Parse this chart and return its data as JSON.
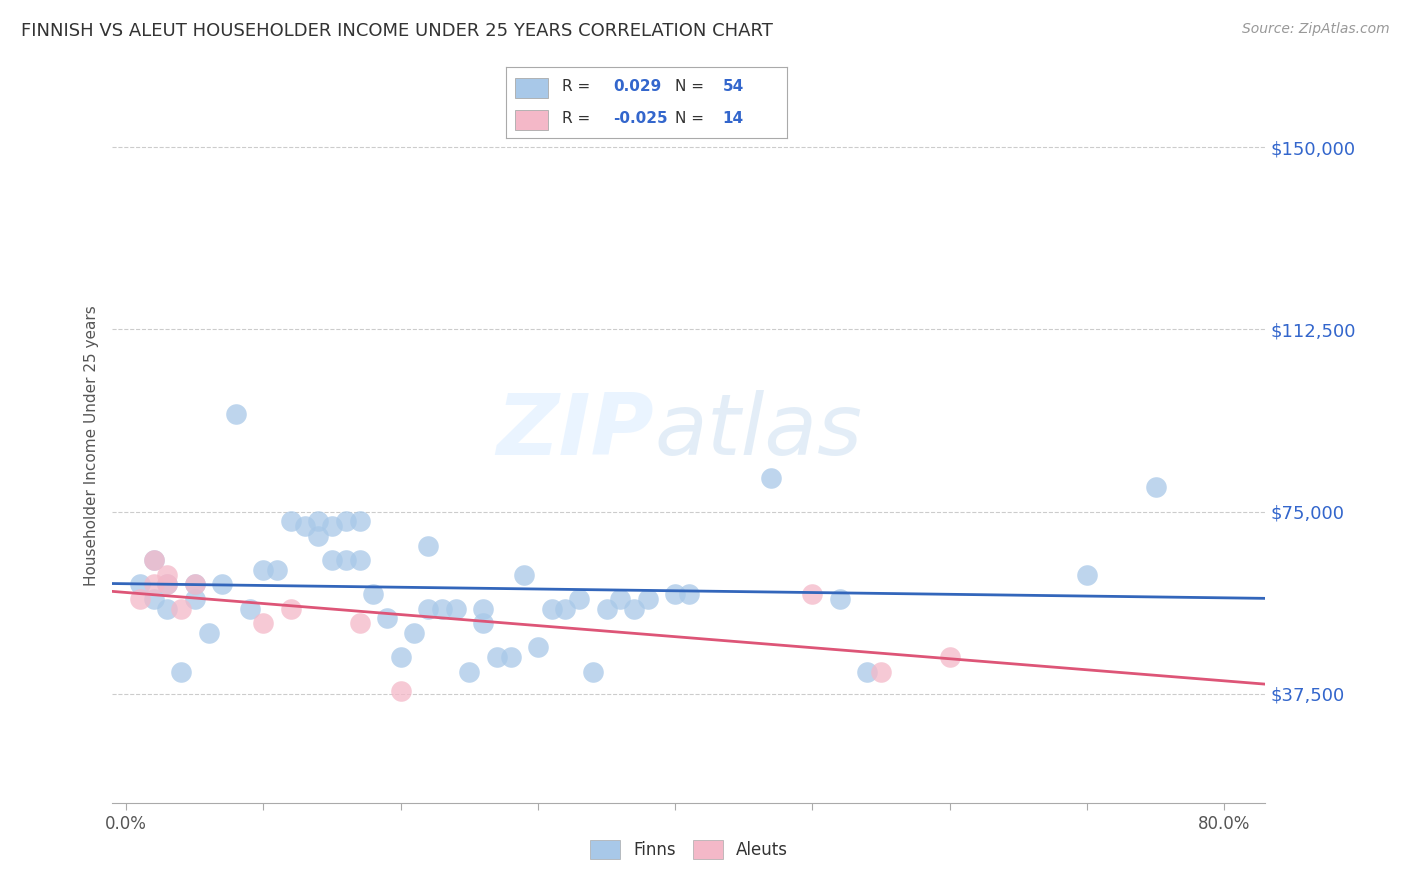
{
  "title": "FINNISH VS ALEUT HOUSEHOLDER INCOME UNDER 25 YEARS CORRELATION CHART",
  "source": "Source: ZipAtlas.com",
  "ylabel": "Householder Income Under 25 years",
  "ytick_labels": [
    "$37,500",
    "$75,000",
    "$112,500",
    "$150,000"
  ],
  "ytick_vals": [
    37500,
    75000,
    112500,
    150000
  ],
  "ylim": [
    15000,
    162000
  ],
  "xlim": [
    -1,
    83
  ],
  "watermark_zip": "ZIP",
  "watermark_atlas": "atlas",
  "legend_finn_R": "0.029",
  "legend_finn_N": "54",
  "legend_aleut_R": "-0.025",
  "legend_aleut_N": "14",
  "finn_color": "#a8c8e8",
  "aleut_color": "#f4b8c8",
  "finn_line_color": "#3366bb",
  "aleut_line_color": "#dd5577",
  "blue_label_color": "#3366cc",
  "finns_x": [
    1,
    2,
    2,
    3,
    3,
    4,
    5,
    5,
    6,
    7,
    8,
    9,
    10,
    11,
    12,
    13,
    14,
    14,
    15,
    15,
    16,
    16,
    17,
    17,
    18,
    19,
    20,
    21,
    22,
    22,
    23,
    24,
    25,
    26,
    26,
    27,
    28,
    29,
    30,
    31,
    32,
    33,
    34,
    35,
    36,
    37,
    38,
    40,
    41,
    47,
    52,
    54,
    70,
    75
  ],
  "finns_y": [
    60000,
    57000,
    65000,
    55000,
    60000,
    42000,
    57000,
    60000,
    50000,
    60000,
    95000,
    55000,
    63000,
    63000,
    73000,
    72000,
    70000,
    73000,
    72000,
    65000,
    65000,
    73000,
    65000,
    73000,
    58000,
    53000,
    45000,
    50000,
    55000,
    68000,
    55000,
    55000,
    42000,
    55000,
    52000,
    45000,
    45000,
    62000,
    47000,
    55000,
    55000,
    57000,
    42000,
    55000,
    57000,
    55000,
    57000,
    58000,
    58000,
    82000,
    57000,
    42000,
    62000,
    80000
  ],
  "aleuts_x": [
    1,
    2,
    2,
    3,
    3,
    4,
    5,
    10,
    12,
    17,
    20,
    50,
    55,
    60
  ],
  "aleuts_y": [
    57000,
    60000,
    65000,
    60000,
    62000,
    55000,
    60000,
    52000,
    55000,
    52000,
    38000,
    58000,
    42000,
    45000
  ],
  "xtick_positions": [
    0,
    10,
    20,
    30,
    40,
    50,
    60,
    70,
    80
  ],
  "xtick_labels_show": [
    "0.0%",
    "",
    "",
    "",
    "",
    "",
    "",
    "",
    "80.0%"
  ]
}
